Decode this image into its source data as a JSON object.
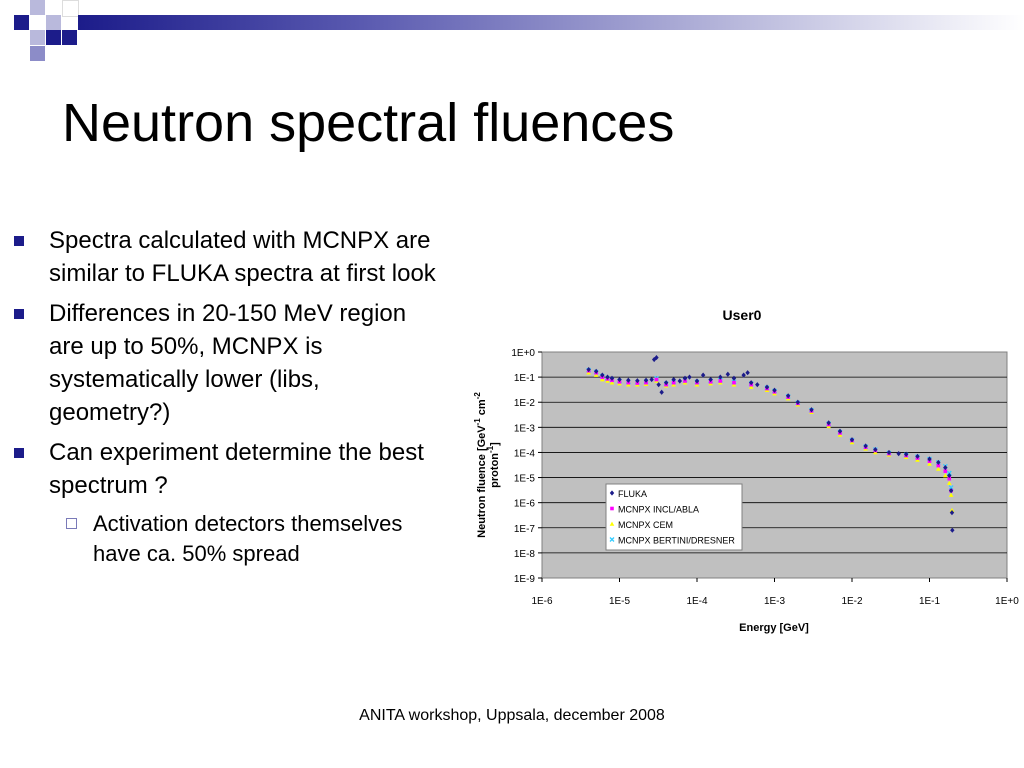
{
  "slide": {
    "title": "Neutron spectral fluences",
    "bullets": [
      "Spectra calculated with MCNPX are similar to FLUKA spectra at first look",
      "Differences in 20-150 MeV region are up to 50%, MCNPX is systematically lower (libs, geometry?)",
      "Can experiment determine the best spectrum ?"
    ],
    "sub_bullets": [
      "Activation detectors themselves have ca. 50% spread"
    ],
    "footer": "ANITA workshop, Uppsala, december 2008",
    "colors": {
      "accent": "#1c1c8a",
      "accent_light": "#8c8cc8",
      "plot_bg": "#c0c0c0"
    }
  },
  "chart_data": {
    "type": "scatter",
    "title": "User0",
    "xlabel": "Energy [GeV]",
    "ylabel_line1": "Neutron fluence [GeV",
    "ylabel_sup1": "-1",
    "ylabel_line1b": " cm",
    "ylabel_sup2": "-2",
    "ylabel_line2": "proton",
    "ylabel_sup3": "-1",
    "ylabel_line2b": "]",
    "x_scale": "log",
    "y_scale": "log",
    "xlim": [
      1e-06,
      1
    ],
    "ylim": [
      1e-09,
      1
    ],
    "x_ticks": [
      "1E-6",
      "1E-5",
      "1E-4",
      "1E-3",
      "1E-2",
      "1E-1",
      "1E+0"
    ],
    "y_ticks": [
      "1E+0",
      "1E-1",
      "1E-2",
      "1E-3",
      "1E-4",
      "1E-5",
      "1E-6",
      "1E-7",
      "1E-8",
      "1E-9"
    ],
    "grid": "horizontal",
    "legend_position": "lower-left inside plot",
    "series": [
      {
        "name": "FLUKA",
        "color": "#1c1c8a",
        "marker": "diamond",
        "points": [
          [
            4e-06,
            0.2
          ],
          [
            5e-06,
            0.17
          ],
          [
            6e-06,
            0.12
          ],
          [
            7e-06,
            0.1
          ],
          [
            8e-06,
            0.09
          ],
          [
            1e-05,
            0.08
          ],
          [
            1.3e-05,
            0.075
          ],
          [
            1.7e-05,
            0.072
          ],
          [
            2.2e-05,
            0.075
          ],
          [
            2.6e-05,
            0.08
          ],
          [
            2.8e-05,
            0.5
          ],
          [
            3e-05,
            0.6
          ],
          [
            3.2e-05,
            0.05
          ],
          [
            3.5e-05,
            0.025
          ],
          [
            4e-05,
            0.06
          ],
          [
            5e-05,
            0.08
          ],
          [
            6e-05,
            0.07
          ],
          [
            7e-05,
            0.09
          ],
          [
            8e-05,
            0.1
          ],
          [
            0.0001,
            0.07
          ],
          [
            0.00012,
            0.12
          ],
          [
            0.00015,
            0.08
          ],
          [
            0.0002,
            0.1
          ],
          [
            0.00025,
            0.13
          ],
          [
            0.0003,
            0.09
          ],
          [
            0.0004,
            0.12
          ],
          [
            0.00045,
            0.15
          ],
          [
            0.0005,
            0.06
          ],
          [
            0.0006,
            0.05
          ],
          [
            0.0008,
            0.04
          ],
          [
            0.001,
            0.03
          ],
          [
            0.0015,
            0.018
          ],
          [
            0.002,
            0.01
          ],
          [
            0.003,
            0.005
          ],
          [
            0.005,
            0.0015
          ],
          [
            0.007,
            0.0007
          ],
          [
            0.01,
            0.00032
          ],
          [
            0.015,
            0.00018
          ],
          [
            0.02,
            0.00013
          ],
          [
            0.03,
            0.0001
          ],
          [
            0.04,
            9e-05
          ],
          [
            0.05,
            8.5e-05
          ],
          [
            0.07,
            7e-05
          ],
          [
            0.1,
            5.5e-05
          ],
          [
            0.13,
            4e-05
          ],
          [
            0.16,
            2.5e-05
          ],
          [
            0.18,
            1.2e-05
          ],
          [
            0.19,
            3e-06
          ],
          [
            0.195,
            4e-07
          ],
          [
            0.197,
            8e-08
          ]
        ]
      },
      {
        "name": "MCNPX INCL/ABLA",
        "color": "#ff00ff",
        "marker": "square",
        "points": [
          [
            4e-06,
            0.18
          ],
          [
            5e-06,
            0.15
          ],
          [
            6e-06,
            0.1
          ],
          [
            7e-06,
            0.085
          ],
          [
            8e-06,
            0.075
          ],
          [
            1e-05,
            0.065
          ],
          [
            1.3e-05,
            0.06
          ],
          [
            1.7e-05,
            0.058
          ],
          [
            2.2e-05,
            0.06
          ],
          [
            3e-05,
            0.08
          ],
          [
            4e-05,
            0.05
          ],
          [
            5e-05,
            0.06
          ],
          [
            7e-05,
            0.07
          ],
          [
            0.0001,
            0.06
          ],
          [
            0.00015,
            0.065
          ],
          [
            0.0002,
            0.07
          ],
          [
            0.0003,
            0.06
          ],
          [
            0.0005,
            0.05
          ],
          [
            0.0008,
            0.035
          ],
          [
            0.001,
            0.026
          ],
          [
            0.0015,
            0.016
          ],
          [
            0.002,
            0.009
          ],
          [
            0.003,
            0.0045
          ],
          [
            0.005,
            0.0013
          ],
          [
            0.007,
            0.0006
          ],
          [
            0.01,
            0.0003
          ],
          [
            0.015,
            0.00016
          ],
          [
            0.02,
            0.00012
          ],
          [
            0.03,
            9e-05
          ],
          [
            0.05,
            7.5e-05
          ],
          [
            0.07,
            6e-05
          ],
          [
            0.1,
            4.5e-05
          ],
          [
            0.13,
            3e-05
          ],
          [
            0.16,
            1.8e-05
          ],
          [
            0.18,
            9e-06
          ],
          [
            0.19,
            3e-06
          ]
        ]
      },
      {
        "name": "MCNPX CEM",
        "color": "#ffff00",
        "marker": "triangle",
        "points": [
          [
            4e-06,
            0.15
          ],
          [
            5e-06,
            0.12
          ],
          [
            6e-06,
            0.08
          ],
          [
            7e-06,
            0.07
          ],
          [
            8e-06,
            0.06
          ],
          [
            1e-05,
            0.055
          ],
          [
            1.3e-05,
            0.05
          ],
          [
            1.7e-05,
            0.05
          ],
          [
            2.2e-05,
            0.052
          ],
          [
            3e-05,
            0.07
          ],
          [
            4e-05,
            0.045
          ],
          [
            5e-05,
            0.05
          ],
          [
            7e-05,
            0.06
          ],
          [
            0.0001,
            0.05
          ],
          [
            0.00015,
            0.055
          ],
          [
            0.0002,
            0.06
          ],
          [
            0.0003,
            0.05
          ],
          [
            0.0005,
            0.04
          ],
          [
            0.0008,
            0.03
          ],
          [
            0.001,
            0.022
          ],
          [
            0.0015,
            0.014
          ],
          [
            0.002,
            0.008
          ],
          [
            0.003,
            0.004
          ],
          [
            0.005,
            0.0011
          ],
          [
            0.007,
            0.0005
          ],
          [
            0.01,
            0.00025
          ],
          [
            0.015,
            0.00014
          ],
          [
            0.02,
            0.0001
          ],
          [
            0.03,
            8e-05
          ],
          [
            0.05,
            6.5e-05
          ],
          [
            0.07,
            5e-05
          ],
          [
            0.1,
            3.5e-05
          ],
          [
            0.13,
            2.2e-05
          ],
          [
            0.16,
            1.2e-05
          ],
          [
            0.18,
            6e-06
          ],
          [
            0.19,
            2e-06
          ],
          [
            0.195,
            5e-07
          ]
        ]
      },
      {
        "name": "MCNPX BERTINI/DRESNER",
        "color": "#33ccff",
        "marker": "cross",
        "points": [
          [
            4e-06,
            0.19
          ],
          [
            5e-06,
            0.16
          ],
          [
            6e-06,
            0.11
          ],
          [
            7e-06,
            0.09
          ],
          [
            8e-06,
            0.08
          ],
          [
            1e-05,
            0.07
          ],
          [
            1.3e-05,
            0.065
          ],
          [
            1.7e-05,
            0.063
          ],
          [
            2.2e-05,
            0.066
          ],
          [
            3e-05,
            0.09
          ],
          [
            4e-05,
            0.055
          ],
          [
            5e-05,
            0.065
          ],
          [
            7e-05,
            0.075
          ],
          [
            0.0001,
            0.065
          ],
          [
            0.00015,
            0.07
          ],
          [
            0.0002,
            0.075
          ],
          [
            0.0003,
            0.065
          ],
          [
            0.0005,
            0.055
          ],
          [
            0.0008,
            0.038
          ],
          [
            0.001,
            0.028
          ],
          [
            0.0015,
            0.017
          ],
          [
            0.002,
            0.0095
          ],
          [
            0.003,
            0.0048
          ],
          [
            0.005,
            0.0014
          ],
          [
            0.007,
            0.00065
          ],
          [
            0.01,
            0.00031
          ],
          [
            0.015,
            0.00017
          ],
          [
            0.02,
            0.00013
          ],
          [
            0.03,
            9.5e-05
          ],
          [
            0.05,
            8e-05
          ],
          [
            0.07,
            6.8e-05
          ],
          [
            0.1,
            5.5e-05
          ],
          [
            0.13,
            4e-05
          ],
          [
            0.16,
            2.8e-05
          ],
          [
            0.18,
            1.5e-05
          ],
          [
            0.19,
            4e-06
          ]
        ]
      }
    ]
  }
}
